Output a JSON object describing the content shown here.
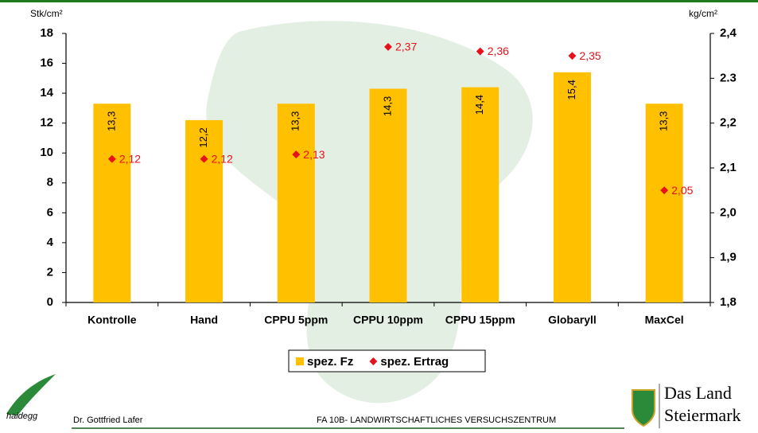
{
  "chart_data": {
    "type": "bar",
    "y_axis_label": "Stk/cm²",
    "y2_axis_label": "kg/cm²",
    "categories": [
      "Kontrolle",
      "Hand",
      "CPPU 5ppm",
      "CPPU 10ppm",
      "CPPU 15ppm",
      "Globaryll",
      "MaxCel"
    ],
    "series": [
      {
        "name": "spez. Fz",
        "type": "bar",
        "color": "#ffc000",
        "values": [
          13.3,
          12.2,
          13.3,
          14.3,
          14.4,
          15.4,
          13.3
        ],
        "value_labels": [
          "13,3",
          "12,2",
          "13,3",
          "14,3",
          "14,4",
          "15,4",
          "13,3"
        ]
      },
      {
        "name": "spez. Ertrag",
        "type": "scatter",
        "axis": "y2",
        "color": "#e8101a",
        "values": [
          2.12,
          2.12,
          2.13,
          2.37,
          2.36,
          2.35,
          2.05
        ],
        "value_labels": [
          "2,12",
          "2,12",
          "2,13",
          "2,37",
          "2,36",
          "2,35",
          "2,05"
        ]
      }
    ],
    "ylim": [
      0,
      18
    ],
    "yticks": [
      0,
      2,
      4,
      6,
      8,
      10,
      12,
      14,
      16,
      18
    ],
    "y2lim": [
      1.8,
      2.4
    ],
    "y2ticks": [
      {
        "value": 1.8,
        "label": "1,8"
      },
      {
        "value": 1.9,
        "label": "1,9"
      },
      {
        "value": 2.0,
        "label": "2,0"
      },
      {
        "value": 2.1,
        "label": "2,1"
      },
      {
        "value": 2.2,
        "label": "2,2"
      },
      {
        "value": 2.3,
        "label": "2.3"
      },
      {
        "value": 2.4,
        "label": "2,4"
      }
    ],
    "grid": false,
    "legend": "bottom"
  },
  "footer": {
    "logo_left": "haidegg",
    "author": "Dr. Gottfried Lafer",
    "center": "FA 10B- LANDWIRTSCHAFTLICHES VERSUCHSZENTRUM",
    "logo_right_line1": "Das Land",
    "logo_right_line2": "Steiermark"
  }
}
